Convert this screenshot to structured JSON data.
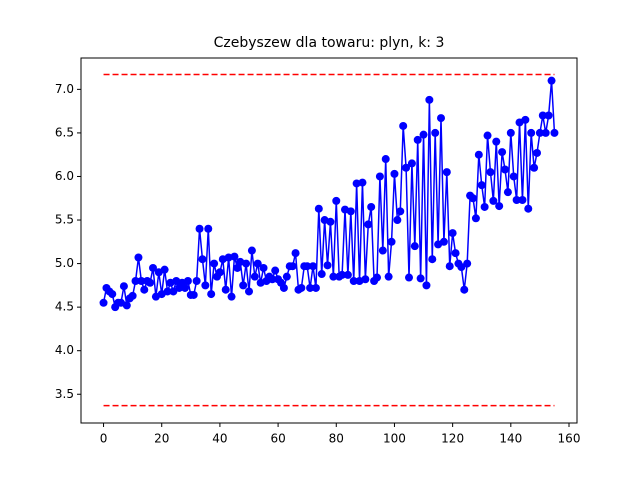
{
  "chart_data": {
    "type": "line",
    "title": "Czebyszew dla towaru: plyn, k: 3",
    "x": [
      0,
      1,
      2,
      3,
      4,
      5,
      6,
      7,
      8,
      9,
      10,
      11,
      12,
      13,
      14,
      15,
      16,
      17,
      18,
      19,
      20,
      21,
      22,
      23,
      24,
      25,
      26,
      27,
      28,
      29,
      30,
      31,
      32,
      33,
      34,
      35,
      36,
      37,
      38,
      39,
      40,
      41,
      42,
      43,
      44,
      45,
      46,
      47,
      48,
      49,
      50,
      51,
      52,
      53,
      54,
      55,
      56,
      57,
      58,
      59,
      60,
      61,
      62,
      63,
      64,
      65,
      66,
      67,
      68,
      69,
      70,
      71,
      72,
      73,
      74,
      75,
      76,
      77,
      78,
      79,
      80,
      81,
      82,
      83,
      84,
      85,
      86,
      87,
      88,
      89,
      90,
      91,
      92,
      93,
      94,
      95,
      96,
      97,
      98,
      99,
      100,
      101,
      102,
      103,
      104,
      105,
      106,
      107,
      108,
      109,
      110,
      111,
      112,
      113,
      114,
      115,
      116,
      117,
      118,
      119,
      120,
      121,
      122,
      123,
      124,
      125,
      126,
      127,
      128,
      129,
      130,
      131,
      132,
      133,
      134,
      135,
      136,
      137,
      138,
      139,
      140,
      141,
      142,
      143,
      144,
      145,
      146,
      147,
      148,
      149,
      150,
      151,
      152,
      153,
      154,
      155
    ],
    "series": [
      {
        "color": "#0000ff",
        "values": [
          4.55,
          4.72,
          4.68,
          4.65,
          4.5,
          4.55,
          4.55,
          4.74,
          4.52,
          4.6,
          4.63,
          4.8,
          5.07,
          4.8,
          4.7,
          4.8,
          4.78,
          4.95,
          4.62,
          4.9,
          4.65,
          4.93,
          4.68,
          4.78,
          4.68,
          4.8,
          4.72,
          4.78,
          4.72,
          4.8,
          4.64,
          4.64,
          4.8,
          5.4,
          5.05,
          4.75,
          5.4,
          4.65,
          5.0,
          4.85,
          4.9,
          5.05,
          4.7,
          5.07,
          4.62,
          5.08,
          4.95,
          5.02,
          4.75,
          5.0,
          4.68,
          5.15,
          4.85,
          5.0,
          4.78,
          4.95,
          4.8,
          4.85,
          4.82,
          4.92,
          4.82,
          4.78,
          4.72,
          4.85,
          4.97,
          4.97,
          5.12,
          4.7,
          4.72,
          4.97,
          4.97,
          4.72,
          4.97,
          4.72,
          5.63,
          4.88,
          5.5,
          4.98,
          5.48,
          4.85,
          5.72,
          4.85,
          4.87,
          5.62,
          4.87,
          5.6,
          4.8,
          5.92,
          4.8,
          5.93,
          4.82,
          5.45,
          5.65,
          4.8,
          4.84,
          6.0,
          5.15,
          6.2,
          4.85,
          5.25,
          6.03,
          5.5,
          5.6,
          6.58,
          6.1,
          4.84,
          6.15,
          5.2,
          6.42,
          4.83,
          6.48,
          4.75,
          6.88,
          5.05,
          6.5,
          5.22,
          6.67,
          5.25,
          6.05,
          4.97,
          5.35,
          5.12,
          5.0,
          4.96,
          4.7,
          5.0,
          5.78,
          5.75,
          5.52,
          6.25,
          5.9,
          5.65,
          6.47,
          6.05,
          5.72,
          6.4,
          5.66,
          6.28,
          6.08,
          5.82,
          6.5,
          6.0,
          5.73,
          6.62,
          5.73,
          6.65,
          5.63,
          6.5,
          6.1,
          6.27,
          6.5,
          6.7,
          6.5,
          6.7,
          7.1,
          6.5
        ]
      }
    ],
    "bounds": {
      "color": "#ff0000",
      "upper": 7.17,
      "lower": 3.37
    },
    "xlim": [
      -7.75,
      162.75
    ],
    "xticks": [
      0,
      20,
      40,
      60,
      80,
      100,
      120,
      140,
      160
    ],
    "ylim": [
      3.17,
      7.36
    ],
    "yticks": [
      3.5,
      {
        "value": 4.0,
        "label": "4.0"
      },
      4.5,
      {
        "value": 5.0,
        "label": "5.0"
      },
      5.5,
      {
        "value": 6.0,
        "label": "6.0"
      },
      6.5,
      {
        "value": 7.0,
        "label": "7.0"
      }
    ]
  }
}
